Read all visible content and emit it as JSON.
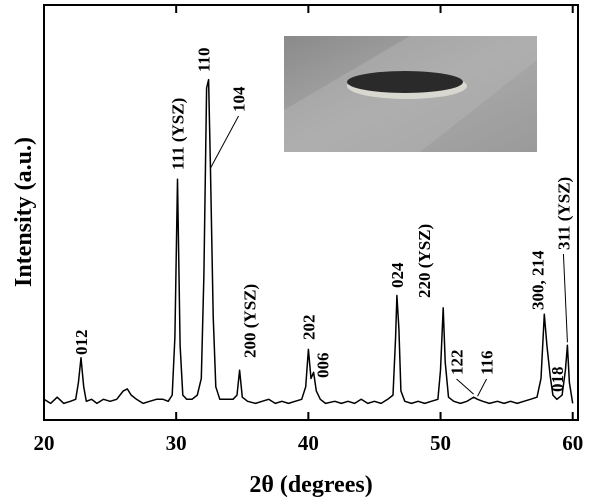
{
  "chart_data": {
    "type": "line",
    "xlabel": "2θ (degrees)",
    "ylabel": "Intensity (a.u.)",
    "xlim": [
      20,
      60.4
    ],
    "ylim": [
      0,
      100
    ],
    "xticks": [
      20,
      30,
      40,
      50,
      60
    ],
    "color": "#000000",
    "x": [
      20,
      20.5,
      21,
      21.5,
      22,
      22.4,
      22.6,
      22.8,
      23.0,
      23.2,
      23.6,
      24,
      24.5,
      25,
      25.5,
      26,
      26.3,
      26.6,
      27,
      27.5,
      28,
      28.5,
      29,
      29.4,
      29.7,
      29.9,
      30.1,
      30.3,
      30.5,
      30.8,
      31.2,
      31.6,
      31.9,
      32.1,
      32.3,
      32.45,
      32.6,
      32.8,
      33.0,
      33.3,
      33.8,
      34.3,
      34.6,
      34.8,
      35.0,
      35.4,
      36,
      36.5,
      37,
      37.5,
      38,
      38.5,
      39,
      39.5,
      39.8,
      40.0,
      40.2,
      40.4,
      40.6,
      40.9,
      41.3,
      42,
      42.5,
      43,
      43.5,
      44,
      44.5,
      45,
      45.5,
      46,
      46.4,
      46.6,
      46.7,
      46.85,
      47.0,
      47.3,
      47.8,
      48.3,
      48.8,
      49.3,
      49.8,
      50.0,
      50.2,
      50.35,
      50.6,
      51,
      51.5,
      52,
      52.5,
      52.8,
      53.2,
      53.7,
      54.3,
      54.8,
      55.3,
      55.8,
      56.3,
      56.8,
      57.3,
      57.6,
      57.85,
      58.05,
      58.3,
      58.5,
      58.8,
      59.2,
      59.45,
      59.6,
      59.75,
      60
    ],
    "values": [
      5,
      4,
      5.5,
      4,
      4.5,
      5,
      9,
      15,
      8,
      4.5,
      5,
      4,
      5,
      4.5,
      5,
      7,
      7.5,
      6,
      5,
      4,
      4.5,
      5,
      5,
      4.5,
      6,
      20,
      58,
      18,
      6,
      5,
      5,
      6,
      10,
      35,
      80,
      82,
      60,
      25,
      8,
      5,
      5,
      5,
      6,
      12,
      5.5,
      4.5,
      4,
      4.5,
      5,
      4,
      4.5,
      4,
      4.5,
      5,
      8,
      17,
      10,
      11.5,
      7,
      5,
      4,
      4.5,
      4,
      4.5,
      4,
      5,
      4,
      4.5,
      4,
      5,
      6,
      20,
      30,
      22,
      7,
      4.5,
      4,
      4.5,
      4,
      4.5,
      5,
      12,
      27,
      14,
      5.5,
      4.5,
      4,
      4.5,
      5.5,
      5,
      4.5,
      4,
      4.5,
      4,
      4.5,
      4,
      4.5,
      5,
      5.5,
      10,
      25.5,
      18,
      10.6,
      6,
      5,
      6,
      12,
      18,
      9,
      4
    ],
    "annotations": [
      {
        "text": "012",
        "x": 22.8
      },
      {
        "text": "111 (YSZ)",
        "x": 30.1
      },
      {
        "text": "110",
        "x": 32.45
      },
      {
        "text": "104",
        "x": 32.6
      },
      {
        "text": "200 (YSZ)",
        "x": 34.8
      },
      {
        "text": "202",
        "x": 40.0
      },
      {
        "text": "006",
        "x": 40.4
      },
      {
        "text": "024",
        "x": 46.7
      },
      {
        "text": "220 (YSZ)",
        "x": 50.2
      },
      {
        "text": "122",
        "x": 52.5
      },
      {
        "text": "116",
        "x": 52.8
      },
      {
        "text": "300, 214",
        "x": 57.85
      },
      {
        "text": "018",
        "x": 58.3
      },
      {
        "text": "311 (YSZ)",
        "x": 59.6
      }
    ]
  }
}
